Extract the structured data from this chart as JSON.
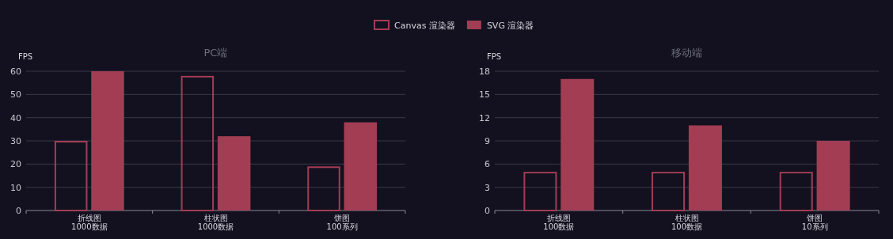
{
  "chart_data": [
    {
      "type": "bar",
      "title": "PC端",
      "ylabel": "FPS",
      "categories": [
        "折线图\n1000数据",
        "柱状图\n1000数据",
        "饼图\n100系列"
      ],
      "ylim": [
        0,
        60
      ],
      "yticks": [
        0,
        10,
        20,
        30,
        40,
        50,
        60
      ],
      "grid": "y",
      "legend": "top",
      "series": [
        {
          "name": "Canvas 渲染器",
          "color": "#a23d54",
          "values": [
            30,
            58,
            19
          ]
        },
        {
          "name": "SVG 渲染器",
          "color": "#a23d54",
          "values": [
            60,
            32,
            38
          ]
        }
      ]
    },
    {
      "type": "bar",
      "title": "移动端",
      "ylabel": "FPS",
      "categories": [
        "折线图\n100数据",
        "柱状图\n100数据",
        "饼图\n10系列"
      ],
      "ylim": [
        0,
        18
      ],
      "yticks": [
        0,
        3,
        6,
        9,
        12,
        15,
        18
      ],
      "grid": "y",
      "legend": "top",
      "series": [
        {
          "name": "Canvas 渲染器",
          "color": "#a23d54",
          "values": [
            5,
            5,
            5
          ]
        },
        {
          "name": "SVG 渲染器",
          "color": "#a23d54",
          "values": [
            17,
            11,
            9
          ]
        }
      ]
    }
  ]
}
